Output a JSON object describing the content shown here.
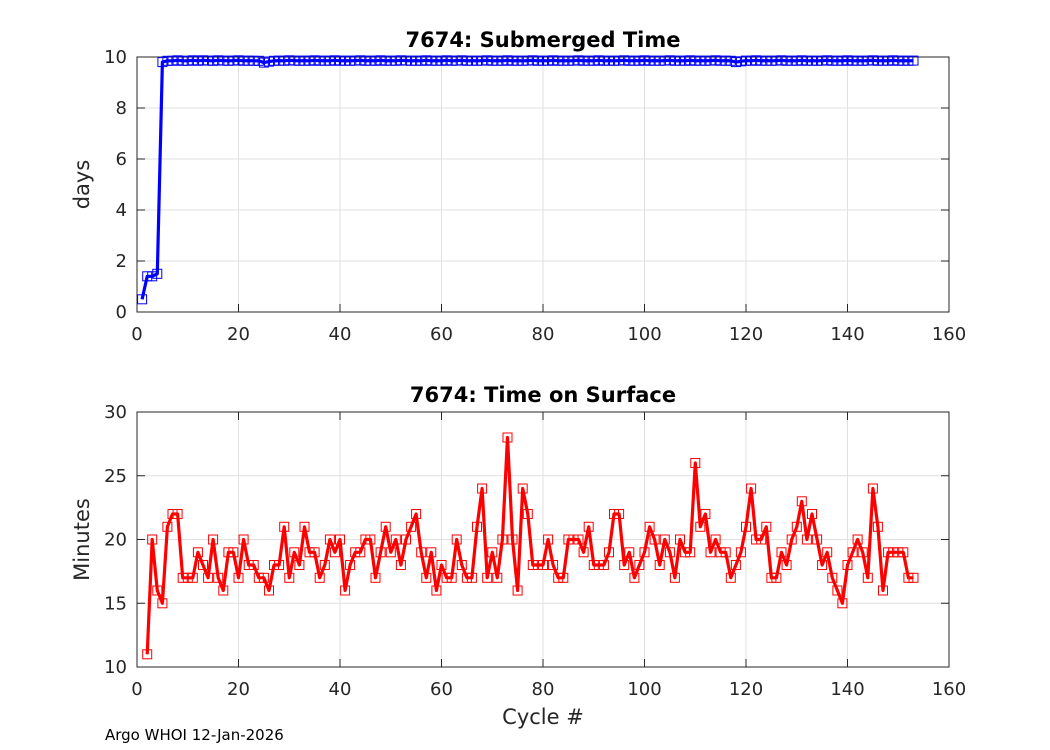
{
  "footer_text": "Argo WHOI 12-Jan-2026",
  "chart_data": [
    {
      "type": "line",
      "title": "7674: Submerged Time",
      "xlabel": "",
      "ylabel": "days",
      "xlim": [
        0,
        160
      ],
      "ylim": [
        0,
        10
      ],
      "xticks": [
        0,
        20,
        40,
        60,
        80,
        100,
        120,
        140,
        160
      ],
      "yticks": [
        0,
        2,
        4,
        6,
        8,
        10
      ],
      "grid": true,
      "color": "#0000ff",
      "marker": "square",
      "series": [
        {
          "name": "Submerged Time",
          "x": [
            1,
            2,
            3,
            4,
            5,
            6,
            7,
            8,
            9,
            10,
            11,
            12,
            13,
            14,
            15,
            16,
            17,
            18,
            19,
            20,
            21,
            22,
            23,
            24,
            25,
            26,
            27,
            28,
            29,
            30,
            31,
            32,
            33,
            34,
            35,
            36,
            37,
            38,
            39,
            40,
            41,
            42,
            43,
            44,
            45,
            46,
            47,
            48,
            49,
            50,
            51,
            52,
            53,
            54,
            55,
            56,
            57,
            58,
            59,
            60,
            61,
            62,
            63,
            64,
            65,
            66,
            67,
            68,
            69,
            70,
            71,
            72,
            73,
            74,
            75,
            76,
            77,
            78,
            79,
            80,
            81,
            82,
            83,
            84,
            85,
            86,
            87,
            88,
            89,
            90,
            91,
            92,
            93,
            94,
            95,
            96,
            97,
            98,
            99,
            100,
            101,
            102,
            103,
            104,
            105,
            106,
            107,
            108,
            109,
            110,
            111,
            112,
            113,
            114,
            115,
            116,
            117,
            118,
            119,
            120,
            121,
            122,
            123,
            124,
            125,
            126,
            127,
            128,
            129,
            130,
            131,
            132,
            133,
            134,
            135,
            136,
            137,
            138,
            139,
            140,
            141,
            142,
            143,
            144,
            145,
            146,
            147,
            148,
            149,
            150,
            151,
            152,
            153
          ],
          "values": [
            0.5,
            1.4,
            1.4,
            1.5,
            9.8,
            9.85,
            9.85,
            9.87,
            9.85,
            9.85,
            9.87,
            9.85,
            9.87,
            9.86,
            9.85,
            9.87,
            9.86,
            9.85,
            9.86,
            9.87,
            9.85,
            9.86,
            9.85,
            9.85,
            9.78,
            9.82,
            9.85,
            9.86,
            9.85,
            9.87,
            9.86,
            9.85,
            9.86,
            9.85,
            9.87,
            9.85,
            9.86,
            9.85,
            9.87,
            9.85,
            9.86,
            9.85,
            9.86,
            9.87,
            9.85,
            9.86,
            9.85,
            9.87,
            9.85,
            9.86,
            9.85,
            9.87,
            9.86,
            9.85,
            9.86,
            9.85,
            9.87,
            9.85,
            9.86,
            9.85,
            9.87,
            9.85,
            9.86,
            9.87,
            9.85,
            9.86,
            9.85,
            9.86,
            9.87,
            9.85,
            9.86,
            9.85,
            9.87,
            9.85,
            9.86,
            9.85,
            9.86,
            9.87,
            9.85,
            9.86,
            9.85,
            9.87,
            9.85,
            9.86,
            9.85,
            9.86,
            9.87,
            9.85,
            9.86,
            9.85,
            9.87,
            9.85,
            9.86,
            9.85,
            9.86,
            9.87,
            9.85,
            9.86,
            9.85,
            9.87,
            9.85,
            9.86,
            9.85,
            9.86,
            9.87,
            9.85,
            9.86,
            9.85,
            9.87,
            9.85,
            9.86,
            9.85,
            9.86,
            9.87,
            9.85,
            9.86,
            9.85,
            9.8,
            9.83,
            9.86,
            9.85,
            9.87,
            9.85,
            9.86,
            9.85,
            9.86,
            9.87,
            9.85,
            9.86,
            9.85,
            9.87,
            9.85,
            9.86,
            9.85,
            9.86,
            9.87,
            9.85,
            9.86,
            9.85,
            9.87,
            9.85,
            9.86,
            9.85,
            9.86,
            9.87,
            9.85,
            9.86,
            9.85,
            9.87,
            9.85,
            9.86,
            9.85,
            9.86
          ]
        }
      ]
    },
    {
      "type": "line",
      "title": "7674: Time on Surface",
      "xlabel": "Cycle #",
      "ylabel": "Minutes",
      "xlim": [
        0,
        160
      ],
      "ylim": [
        10,
        30
      ],
      "xticks": [
        0,
        20,
        40,
        60,
        80,
        100,
        120,
        140,
        160
      ],
      "yticks": [
        10,
        15,
        20,
        25,
        30
      ],
      "grid": true,
      "color": "#ff0000",
      "marker": "square",
      "series": [
        {
          "name": "Time on Surface",
          "x": [
            2,
            3,
            4,
            5,
            6,
            7,
            8,
            9,
            10,
            11,
            12,
            13,
            14,
            15,
            16,
            17,
            18,
            19,
            20,
            21,
            22,
            23,
            24,
            25,
            26,
            27,
            28,
            29,
            30,
            31,
            32,
            33,
            34,
            35,
            36,
            37,
            38,
            39,
            40,
            41,
            42,
            43,
            44,
            45,
            46,
            47,
            48,
            49,
            50,
            51,
            52,
            53,
            54,
            55,
            56,
            57,
            58,
            59,
            60,
            61,
            62,
            63,
            64,
            65,
            66,
            67,
            68,
            69,
            70,
            71,
            72,
            73,
            74,
            75,
            76,
            77,
            78,
            79,
            80,
            81,
            82,
            83,
            84,
            85,
            86,
            87,
            88,
            89,
            90,
            91,
            92,
            93,
            94,
            95,
            96,
            97,
            98,
            99,
            100,
            101,
            102,
            103,
            104,
            105,
            106,
            107,
            108,
            109,
            110,
            111,
            112,
            113,
            114,
            115,
            116,
            117,
            118,
            119,
            120,
            121,
            122,
            123,
            124,
            125,
            126,
            127,
            128,
            129,
            130,
            131,
            132,
            133,
            134,
            135,
            136,
            137,
            138,
            139,
            140,
            141,
            142,
            143,
            144,
            145,
            146,
            147,
            148,
            149,
            150,
            151,
            152,
            153
          ],
          "values": [
            11,
            20,
            16,
            15,
            21,
            22,
            22,
            17,
            17,
            17,
            19,
            18,
            17,
            20,
            17,
            16,
            19,
            19,
            17,
            20,
            18,
            18,
            17,
            17,
            16,
            18,
            18,
            21,
            17,
            19,
            18,
            21,
            19,
            19,
            17,
            18,
            20,
            19,
            20,
            16,
            18,
            19,
            19,
            20,
            20,
            17,
            19,
            21,
            19,
            20,
            18,
            20,
            21,
            22,
            19,
            17,
            19,
            16,
            18,
            17,
            17,
            20,
            18,
            17,
            17,
            21,
            24,
            17,
            19,
            17,
            20,
            28,
            20,
            16,
            24,
            22,
            18,
            18,
            18,
            20,
            18,
            17,
            17,
            20,
            20,
            20,
            19,
            21,
            18,
            18,
            18,
            19,
            22,
            22,
            18,
            19,
            17,
            18,
            19,
            21,
            20,
            18,
            20,
            19,
            17,
            20,
            19,
            19,
            26,
            21,
            22,
            19,
            20,
            19,
            19,
            17,
            18,
            19,
            21,
            24,
            20,
            20,
            21,
            17,
            17,
            19,
            18,
            20,
            21,
            23,
            20,
            22,
            20,
            18,
            19,
            17,
            16,
            15,
            18,
            19,
            20,
            19,
            17,
            24,
            21,
            16,
            19,
            19,
            19,
            19,
            17,
            17
          ]
        }
      ]
    }
  ]
}
